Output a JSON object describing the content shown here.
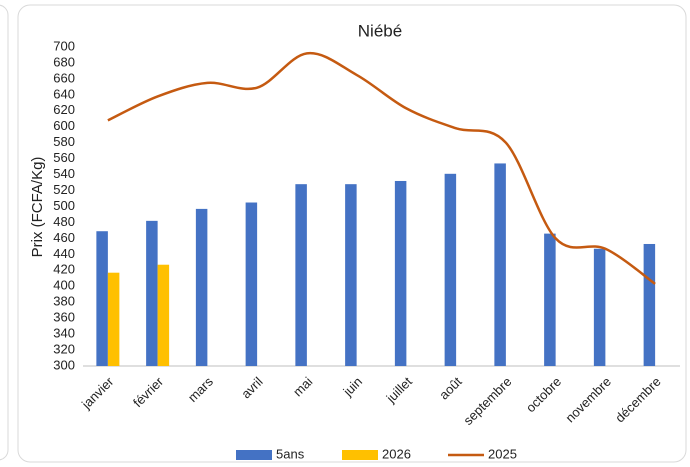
{
  "chart_data": {
    "type": "bar",
    "title": "Niébé",
    "y_label": "Prix (FCFA/Kg)",
    "categories": [
      "janvier",
      "février",
      "mars",
      "avril",
      "mai",
      "juin",
      "juillet",
      "août",
      "septembre",
      "octobre",
      "novembre",
      "décembre"
    ],
    "series": [
      {
        "name": "5ans",
        "color": "#4472c4",
        "values": [
          469,
          482,
          497,
          505,
          528,
          528,
          532,
          541,
          554,
          466,
          447,
          453
        ]
      },
      {
        "name": "2026",
        "color": "#ffc000",
        "values": [
          417,
          427,
          null,
          null,
          null,
          null,
          null,
          null,
          null,
          null,
          null,
          null
        ]
      },
      {
        "name": "2025",
        "color": "#c55a11",
        "type": "line",
        "values": [
          608,
          638,
          655,
          649,
          692,
          665,
          623,
          598,
          580,
          460,
          447,
          403
        ]
      }
    ],
    "ylim": [
      300,
      700
    ],
    "yticks": [
      300,
      320,
      340,
      360,
      380,
      400,
      420,
      440,
      460,
      480,
      500,
      520,
      540,
      560,
      580,
      600,
      620,
      640,
      660,
      680,
      700
    ],
    "grid": false,
    "legend": "bottom"
  }
}
